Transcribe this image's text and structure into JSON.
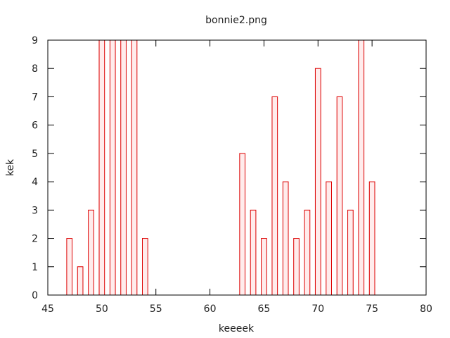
{
  "chart_data": {
    "type": "bar",
    "title": "bonnie2.png",
    "xlabel": "keeeek",
    "ylabel": "kek",
    "xlim": [
      45,
      80
    ],
    "ylim": [
      0,
      9
    ],
    "xticks": [
      45,
      50,
      55,
      60,
      65,
      70,
      75,
      80
    ],
    "yticks": [
      0,
      1,
      2,
      3,
      4,
      5,
      6,
      7,
      8,
      9
    ],
    "x": [
      47,
      48,
      49,
      50,
      51,
      52,
      53,
      54,
      63,
      64,
      65,
      66,
      67,
      68,
      69,
      70,
      71,
      72,
      73,
      74,
      75
    ],
    "values": [
      2,
      1,
      3,
      9,
      9,
      9,
      9,
      2,
      5,
      3,
      2,
      7,
      4,
      2,
      3,
      8,
      4,
      7,
      3,
      9,
      4
    ],
    "bar_color": "#dd0000",
    "bar_fill": "#ffecec"
  }
}
